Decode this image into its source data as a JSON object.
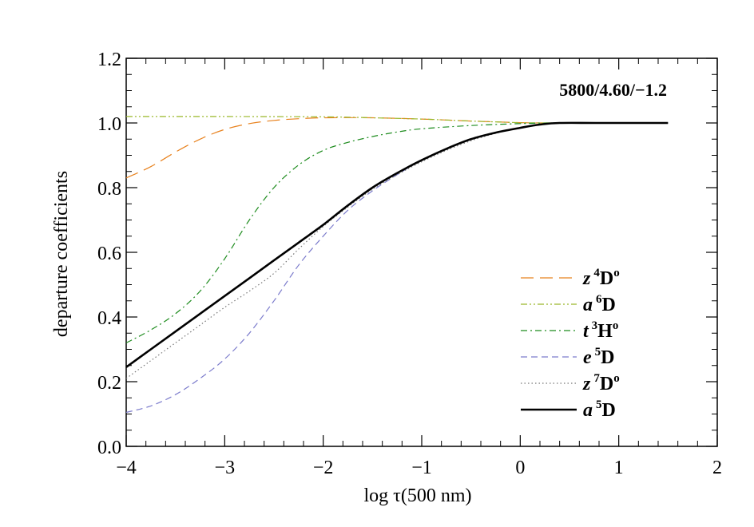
{
  "chart_data": {
    "type": "line",
    "title": "",
    "annotation": "5800/4.60/−1.2",
    "xlabel": "log τ(500 nm)",
    "ylabel": "departure coefficients",
    "xlim": [
      -4,
      2
    ],
    "ylim": [
      0.0,
      1.2
    ],
    "xticks": [
      -4,
      -3,
      -2,
      -1,
      0,
      1,
      2
    ],
    "xtick_labels": [
      "−4",
      "−3",
      "−2",
      "−1",
      "0",
      "1",
      "2"
    ],
    "yticks": [
      0.0,
      0.2,
      0.4,
      0.6,
      0.8,
      1.0,
      1.2
    ],
    "ytick_labels": [
      "0.0",
      "0.2",
      "0.4",
      "0.6",
      "0.8",
      "1.0",
      "1.2"
    ],
    "legend_position": "bottom-right",
    "series": [
      {
        "key": "z4Do",
        "name": "z 4Do",
        "label_prefix": "z",
        "label_sup": "4",
        "label_term": "D",
        "label_term_sup": "o",
        "color": "#e8821e",
        "style": "long-dash",
        "x": [
          -4,
          -3.75,
          -3.5,
          -3.25,
          -3,
          -2.75,
          -2.5,
          -2.25,
          -2,
          -1.5,
          -1,
          -0.5,
          0,
          0.25,
          0.4,
          0.8,
          1.5
        ],
        "y": [
          0.83,
          0.865,
          0.91,
          0.95,
          0.98,
          0.998,
          1.008,
          1.013,
          1.016,
          1.016,
          1.012,
          1.006,
          1.001,
          1.0,
          1.0,
          1.0,
          1.0
        ]
      },
      {
        "key": "a6D",
        "name": "a 6D",
        "label_prefix": "a",
        "label_sup": "6",
        "label_term": "D",
        "label_term_sup": "",
        "color": "#9ab82a",
        "style": "dash-dot-dot",
        "x": [
          -4,
          -3,
          -2,
          -1.5,
          -1,
          -0.5,
          0,
          0.3,
          0.4,
          0.8,
          1.5
        ],
        "y": [
          1.02,
          1.02,
          1.019,
          1.016,
          1.012,
          1.006,
          1.001,
          1.0,
          1.0,
          1.0,
          1.0
        ]
      },
      {
        "key": "t3Ho",
        "name": "t 3Ho",
        "label_prefix": "t",
        "label_sup": "3",
        "label_term": "H",
        "label_term_sup": "o",
        "color": "#1e8c1e",
        "style": "dash-dot",
        "x": [
          -4,
          -3.75,
          -3.5,
          -3.25,
          -3,
          -2.75,
          -2.5,
          -2.25,
          -2,
          -1.75,
          -1.5,
          -1.25,
          -1,
          -0.5,
          0,
          0.3,
          0.4,
          0.8,
          1.5
        ],
        "y": [
          0.32,
          0.36,
          0.41,
          0.48,
          0.58,
          0.7,
          0.8,
          0.87,
          0.915,
          0.94,
          0.958,
          0.972,
          0.982,
          0.992,
          0.998,
          1.0,
          1.0,
          1.0,
          1.0
        ]
      },
      {
        "key": "e5D",
        "name": "e 5D",
        "label_prefix": "e",
        "label_sup": "5",
        "label_term": "D",
        "label_term_sup": "",
        "color": "#7c7ccc",
        "style": "dash",
        "x": [
          -4,
          -3.75,
          -3.5,
          -3.25,
          -3,
          -2.75,
          -2.5,
          -2.25,
          -2,
          -1.75,
          -1.5,
          -1.25,
          -1,
          -0.75,
          -0.5,
          -0.25,
          0,
          0.2,
          0.4,
          0.8,
          1.5
        ],
        "y": [
          0.105,
          0.125,
          0.16,
          0.21,
          0.27,
          0.35,
          0.45,
          0.56,
          0.65,
          0.73,
          0.79,
          0.84,
          0.885,
          0.92,
          0.95,
          0.97,
          0.985,
          0.995,
          1.0,
          1.0,
          1.0
        ]
      },
      {
        "key": "z7Do",
        "name": "z 7Do",
        "label_prefix": "z",
        "label_sup": "7",
        "label_term": "D",
        "label_term_sup": "o",
        "color": "#777777",
        "style": "dot",
        "x": [
          -4,
          -3.75,
          -3.5,
          -3.25,
          -3,
          -2.75,
          -2.5,
          -2.25,
          -2,
          -1.75,
          -1.5,
          -1.25,
          -1,
          -0.75,
          -0.5,
          -0.25,
          0,
          0.2,
          0.4,
          0.8,
          1.5
        ],
        "y": [
          0.21,
          0.265,
          0.32,
          0.375,
          0.43,
          0.48,
          0.535,
          0.61,
          0.68,
          0.74,
          0.795,
          0.84,
          0.88,
          0.915,
          0.945,
          0.968,
          0.985,
          0.995,
          1.0,
          1.0,
          1.0
        ]
      },
      {
        "key": "a5D",
        "name": "a 5D",
        "label_prefix": "a",
        "label_sup": "5",
        "label_term": "D",
        "label_term_sup": "",
        "color": "#000000",
        "style": "solid-thick",
        "x": [
          -4,
          -3.75,
          -3.5,
          -3.25,
          -3,
          -2.75,
          -2.5,
          -2.25,
          -2,
          -1.75,
          -1.5,
          -1.25,
          -1,
          -0.75,
          -0.5,
          -0.25,
          0,
          0.2,
          0.4,
          0.8,
          1.5
        ],
        "y": [
          0.245,
          0.3,
          0.355,
          0.41,
          0.465,
          0.52,
          0.575,
          0.63,
          0.685,
          0.745,
          0.8,
          0.845,
          0.885,
          0.92,
          0.95,
          0.97,
          0.985,
          0.995,
          1.0,
          1.0,
          1.0
        ]
      }
    ]
  }
}
